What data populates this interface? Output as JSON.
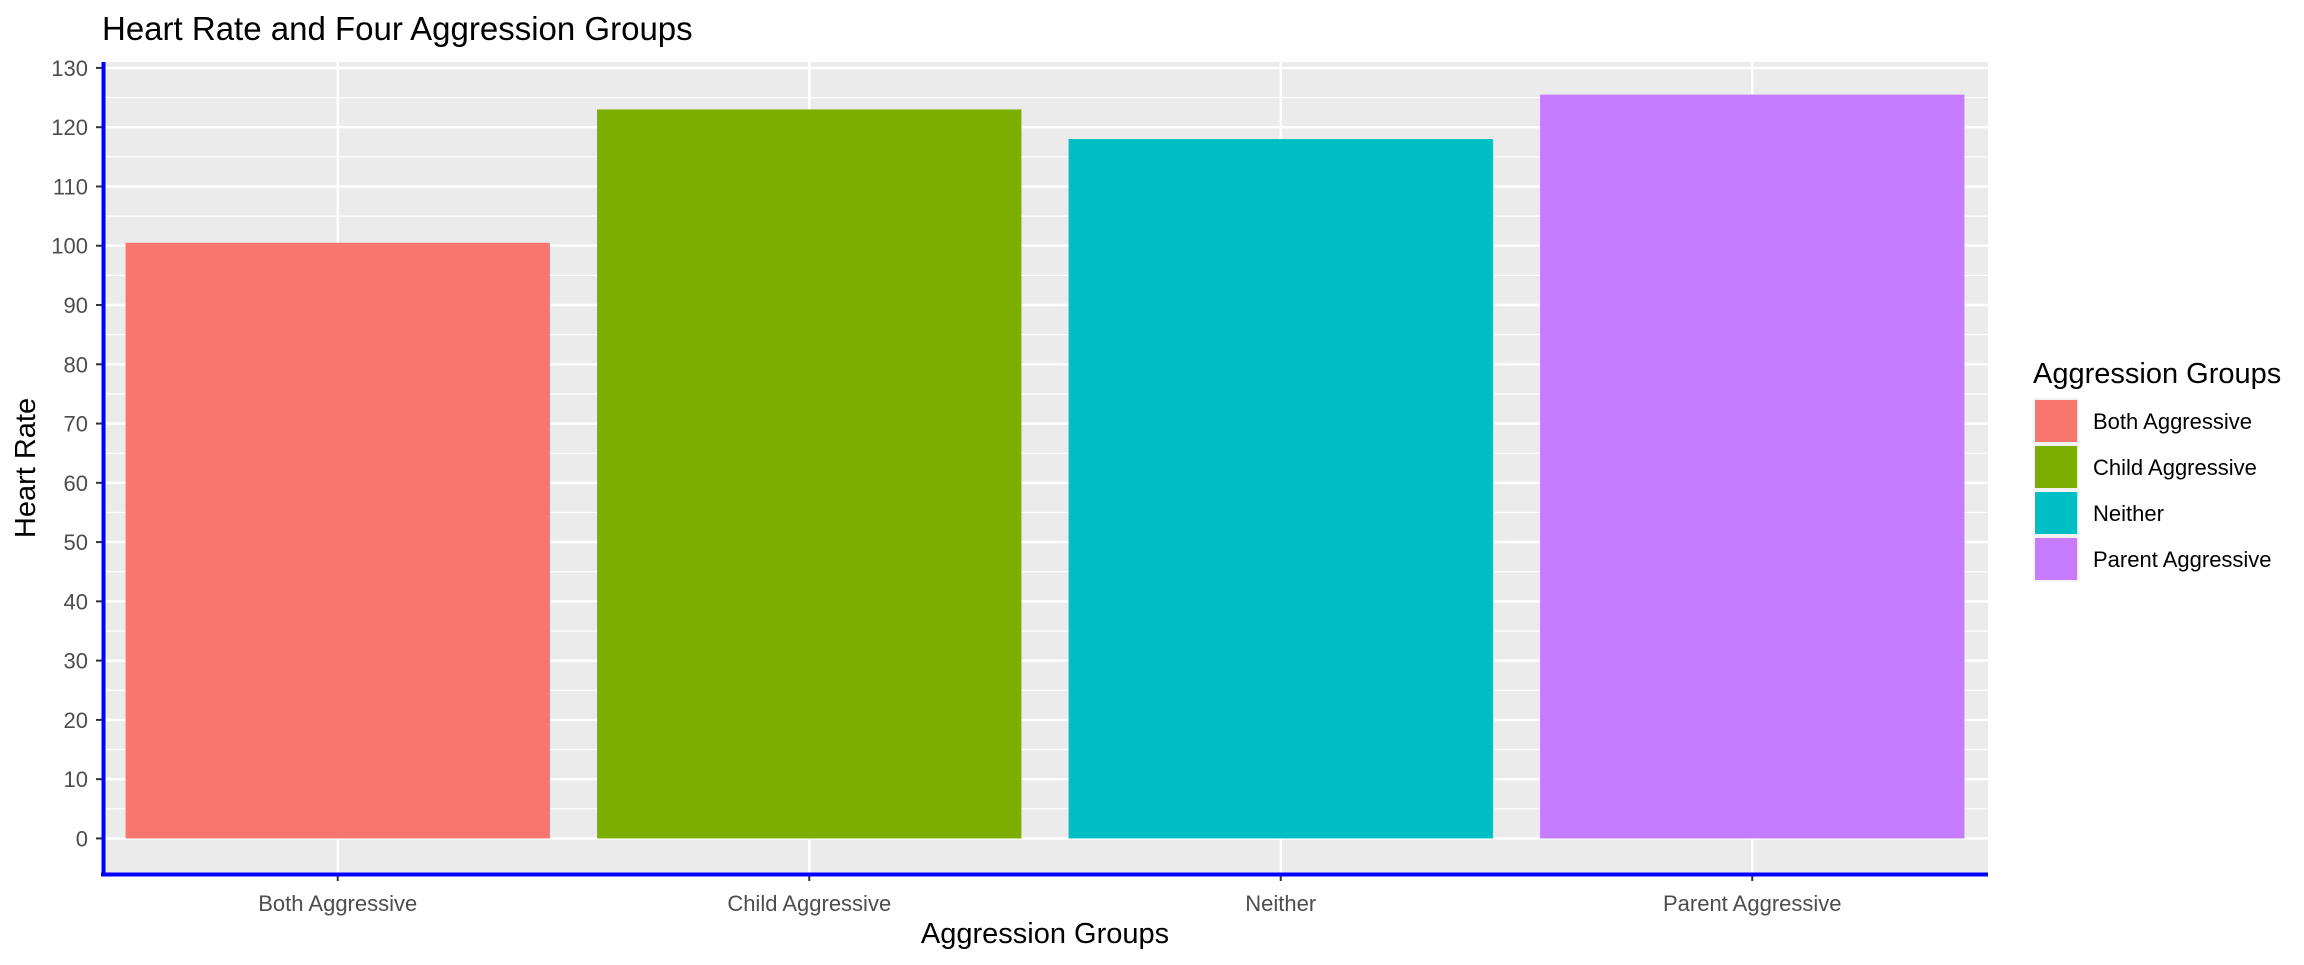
{
  "chart_data": {
    "type": "bar",
    "title": "Heart Rate and Four Aggression Groups",
    "xlabel": "Aggression Groups",
    "ylabel": "Heart Rate",
    "categories": [
      "Both Aggressive",
      "Child Aggressive",
      "Neither",
      "Parent Aggressive"
    ],
    "values": [
      100.5,
      123,
      118,
      125.5
    ],
    "colors": [
      "#F8766D",
      "#7CAE00",
      "#00BFC4",
      "#C77CFF"
    ],
    "ylim": [
      -6,
      131
    ],
    "yticks": [
      0,
      10,
      20,
      30,
      40,
      50,
      60,
      70,
      80,
      90,
      100,
      110,
      120,
      130
    ],
    "grid": true,
    "panel_background": "#EBEBEB",
    "axis_line_color": "#0000FF",
    "legend": {
      "title": "Aggression Groups",
      "position": "right",
      "entries": [
        "Both Aggressive",
        "Child Aggressive",
        "Neither",
        "Parent Aggressive"
      ]
    }
  }
}
